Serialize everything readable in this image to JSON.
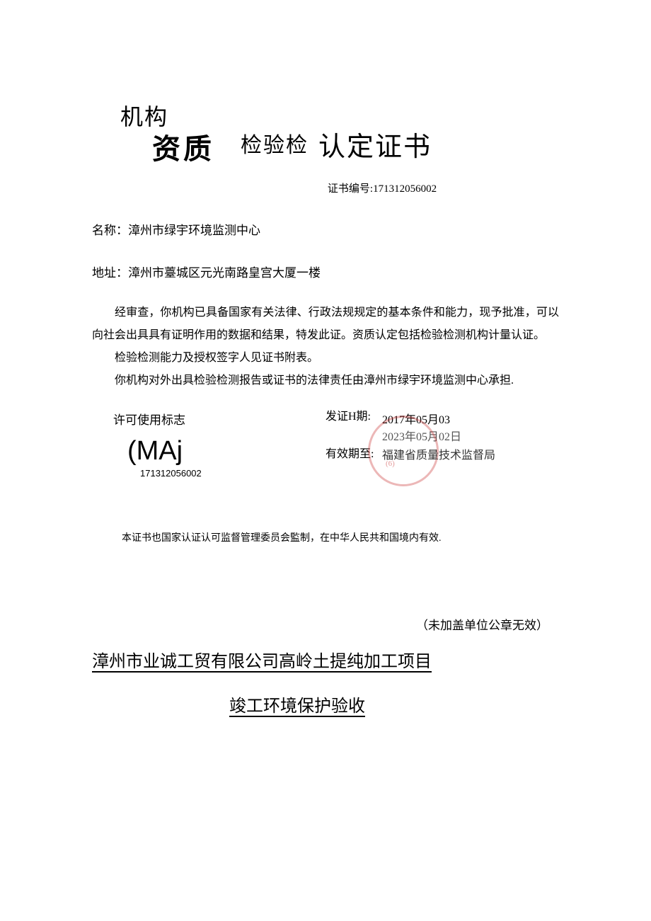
{
  "title": {
    "line1": "机构",
    "part1": "资质",
    "part2": "检验检",
    "part3": "认定证书"
  },
  "cert_number_label": "证书编号:",
  "cert_number": "171312056002",
  "name_label": "名称：",
  "name_value": "漳州市绿宇环境监测中心",
  "address_label": "地址：",
  "address_value": "漳州市薹城区元光南路皇宫大厦一楼",
  "body_p1": "经审查，你机构已具备国家有关法律、行政法规规定的基本条件和能力，现予批准，可以向社会出具具有证明作用的数据和结果，特发此证。资质认定包括检验检测机构计量认证。",
  "body_p2": "检验检测能力及授权签字人见证书附表。",
  "body_p3": "你机构对外出具检验检测报告或证书的法律责任由漳州市绿宇环境监测中心承担.",
  "permit_mark_label": "许可使用标志",
  "permit_logo": "(MAj",
  "permit_logo_number": "171312056002",
  "issue_date_label": "发证H期:",
  "issue_date_value": "2017年05月03",
  "valid_until_label": "有效期至:",
  "valid_until_value": "2023年05月02日",
  "issuing_authority": "福建省质量技术监督局",
  "stamp_inner_text": "(6)",
  "footer_note": "本证书也国家认证认可监督管理委员会監制，在中华人民共和国境内有效.",
  "bottom_note": "（未加盖单位公章无效）",
  "project_title": "漳州市业诚工贸有限公司高岭土提纯加工项目",
  "project_subtitle": "竣工环境保护验收",
  "colors": {
    "text": "#000000",
    "background": "#ffffff",
    "stamp_red": "rgba(200, 50, 50, 0.35)",
    "grey_text": "#555555"
  }
}
